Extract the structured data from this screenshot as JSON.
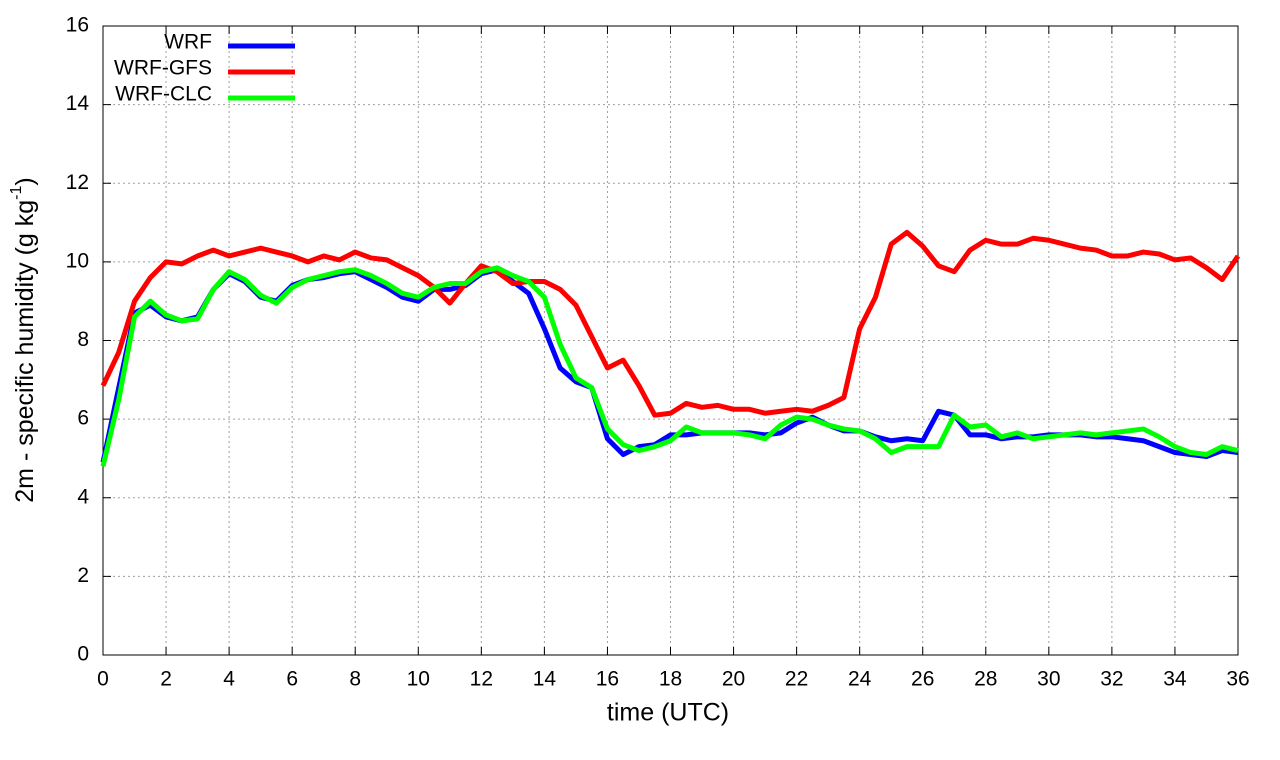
{
  "chart_data": {
    "type": "line",
    "xlabel": "time (UTC)",
    "ylabel": {
      "text": "2m - specific humidity (g kg",
      "sup": "-1",
      "end": ")"
    },
    "x": [
      0,
      0.5,
      1,
      1.5,
      2,
      2.5,
      3,
      3.5,
      4,
      4.5,
      5,
      5.5,
      6,
      6.5,
      7,
      7.5,
      8,
      8.5,
      9,
      9.5,
      10,
      10.5,
      11,
      11.5,
      12,
      12.5,
      13,
      13.5,
      14,
      14.5,
      15,
      15.5,
      16,
      16.5,
      17,
      17.5,
      18,
      18.5,
      19,
      19.5,
      20,
      20.5,
      21,
      21.5,
      22,
      22.5,
      23,
      23.5,
      24,
      24.5,
      25,
      25.5,
      26,
      26.5,
      27,
      27.5,
      28,
      28.5,
      29,
      29.5,
      30,
      30.5,
      31,
      31.5,
      32,
      32.5,
      33,
      33.5,
      34,
      34.5,
      35,
      35.5,
      36
    ],
    "series": [
      {
        "name": "WRF",
        "color": "#0000ff",
        "values": [
          4.9,
          6.8,
          8.7,
          8.9,
          8.6,
          8.5,
          8.6,
          9.3,
          9.7,
          9.5,
          9.1,
          9.0,
          9.4,
          9.55,
          9.6,
          9.7,
          9.75,
          9.55,
          9.35,
          9.1,
          9.0,
          9.3,
          9.3,
          9.4,
          9.7,
          9.8,
          9.5,
          9.2,
          8.3,
          7.3,
          6.95,
          6.8,
          5.5,
          5.1,
          5.3,
          5.35,
          5.6,
          5.6,
          5.65,
          5.65,
          5.65,
          5.65,
          5.6,
          5.65,
          5.9,
          6.05,
          5.85,
          5.7,
          5.7,
          5.55,
          5.45,
          5.5,
          5.45,
          6.2,
          6.1,
          5.6,
          5.6,
          5.5,
          5.55,
          5.55,
          5.6,
          5.6,
          5.6,
          5.55,
          5.55,
          5.5,
          5.45,
          5.3,
          5.15,
          5.1,
          5.05,
          5.2,
          5.15
        ]
      },
      {
        "name": "WRF-GFS",
        "color": "#ff0000",
        "values": [
          6.85,
          7.7,
          9.0,
          9.6,
          10.0,
          9.95,
          10.15,
          10.3,
          10.15,
          10.25,
          10.35,
          10.25,
          10.15,
          10.0,
          10.15,
          10.05,
          10.25,
          10.1,
          10.05,
          9.85,
          9.65,
          9.35,
          8.95,
          9.45,
          9.9,
          9.75,
          9.45,
          9.5,
          9.5,
          9.3,
          8.9,
          8.1,
          7.3,
          7.5,
          6.85,
          6.1,
          6.15,
          6.4,
          6.3,
          6.35,
          6.25,
          6.25,
          6.15,
          6.2,
          6.25,
          6.2,
          6.35,
          6.55,
          8.3,
          9.1,
          10.45,
          10.75,
          10.4,
          9.9,
          9.75,
          10.3,
          10.55,
          10.45,
          10.45,
          10.6,
          10.55,
          10.45,
          10.35,
          10.3,
          10.15,
          10.15,
          10.25,
          10.2,
          10.05,
          10.1,
          9.85,
          9.55,
          10.15
        ]
      },
      {
        "name": "WRF-CLC",
        "color": "#00ff00",
        "values": [
          4.8,
          6.5,
          8.6,
          9.0,
          8.65,
          8.5,
          8.55,
          9.3,
          9.75,
          9.55,
          9.15,
          8.95,
          9.35,
          9.55,
          9.65,
          9.75,
          9.8,
          9.65,
          9.45,
          9.2,
          9.1,
          9.35,
          9.45,
          9.45,
          9.75,
          9.85,
          9.65,
          9.5,
          9.1,
          7.9,
          7.05,
          6.8,
          5.75,
          5.35,
          5.2,
          5.3,
          5.45,
          5.8,
          5.65,
          5.65,
          5.65,
          5.6,
          5.5,
          5.85,
          6.05,
          6.0,
          5.85,
          5.75,
          5.7,
          5.5,
          5.15,
          5.3,
          5.3,
          5.3,
          6.1,
          5.8,
          5.85,
          5.55,
          5.65,
          5.5,
          5.55,
          5.6,
          5.65,
          5.6,
          5.65,
          5.7,
          5.75,
          5.55,
          5.3,
          5.15,
          5.1,
          5.3,
          5.2
        ]
      }
    ],
    "xlim": [
      0,
      36
    ],
    "xticks": [
      0,
      2,
      4,
      6,
      8,
      10,
      12,
      14,
      16,
      18,
      20,
      22,
      24,
      26,
      28,
      30,
      32,
      34,
      36
    ],
    "ylim": [
      0,
      16
    ],
    "yticks": [
      0,
      2,
      4,
      6,
      8,
      10,
      12,
      14,
      16
    ],
    "grid": true,
    "legend": "top-left"
  }
}
